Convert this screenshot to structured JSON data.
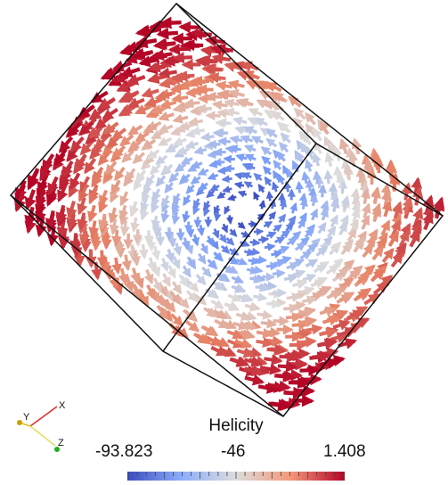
{
  "scene": {
    "description_free": true,
    "colors": {
      "low": "#3b4cc0",
      "mid": "#dddddd",
      "high": "#b40426",
      "box": "#111111",
      "axis_x": "#e03030",
      "axis_y": "#e0c020",
      "axis_z": "#20b020"
    }
  },
  "orientation_axes": {
    "x_label": "X",
    "y_label": "Y",
    "z_label": "Z"
  },
  "legend": {
    "title": "Helicity",
    "min_label": "-93.823",
    "mid_label": "-46",
    "max_label": "1.408",
    "range": [
      -93.823,
      1.408
    ],
    "colormap": "cool-to-warm"
  }
}
